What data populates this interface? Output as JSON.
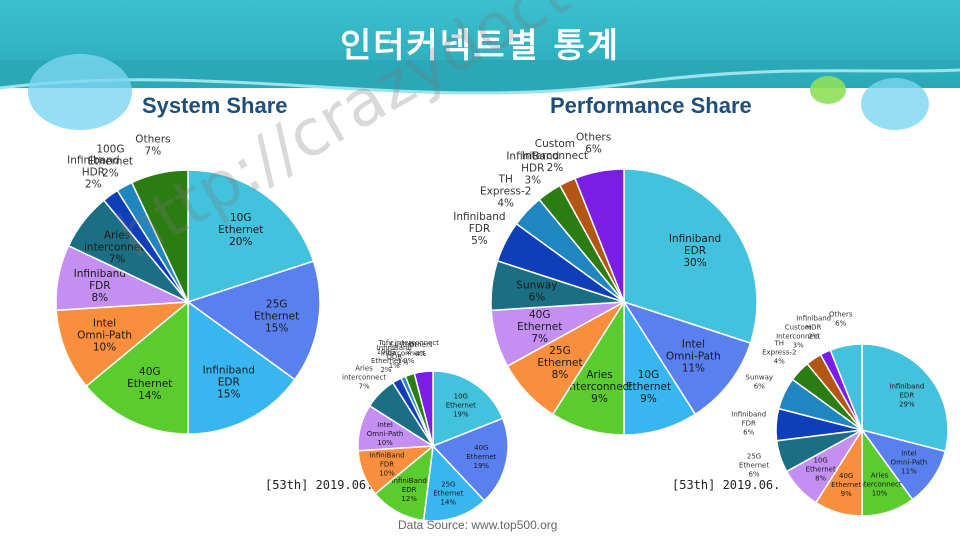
{
  "header": {
    "title": "인터커넥트별 통계"
  },
  "subheads": {
    "system": "System Share",
    "performance": "Performance Share"
  },
  "notes": {
    "date_left": "[53th] 2019.06.",
    "date_right": "[53th] 2019.06.",
    "source": "Data Source: www.top500.org"
  },
  "watermark": "http://crazydoctory.com",
  "colors": {
    "banner": "#3cc0cf",
    "subhead": "#1f4e79"
  },
  "chart_data": [
    {
      "type": "pie",
      "title": "System Share",
      "series": [
        {
          "label": "10G Ethernet",
          "pct": "20%",
          "value": 20,
          "color": "#43c2dd"
        },
        {
          "label": "25G Ethernet",
          "pct": "15%",
          "value": 15,
          "color": "#5a80f0"
        },
        {
          "label": "Infiniband EDR",
          "pct": "15%",
          "value": 15,
          "color": "#38b6f0"
        },
        {
          "label": "40G Ethernet",
          "pct": "14%",
          "value": 14,
          "color": "#5bcc2e"
        },
        {
          "label": "Intel Omni-Path",
          "pct": "10%",
          "value": 10,
          "color": "#f98f3c"
        },
        {
          "label": "Infiniband FDR",
          "pct": "8%",
          "value": 8,
          "color": "#c48ef2"
        },
        {
          "label": "Aries interconnect",
          "pct": "7%",
          "value": 7,
          "color": "#1b6f84"
        },
        {
          "label": "Infiniband HDR",
          "pct": "2%",
          "value": 2,
          "color": "#0f3fb8"
        },
        {
          "label": "100G Ethernet",
          "pct": "2%",
          "value": 2,
          "color": "#1f86c0"
        },
        {
          "label": "Others",
          "pct": "7%",
          "value": 7,
          "color": "#2b7d12"
        }
      ]
    },
    {
      "type": "pie",
      "title": "",
      "series": [
        {
          "label": "10G Ethernet",
          "pct": "19%",
          "value": 19,
          "color": "#43c2dd"
        },
        {
          "label": "40G Ethernet",
          "pct": "19%",
          "value": 19,
          "color": "#5a80f0"
        },
        {
          "label": "25G Ethernet",
          "pct": "14%",
          "value": 14,
          "color": "#38b6f0"
        },
        {
          "label": "InfiniBand EDR",
          "pct": "12%",
          "value": 12,
          "color": "#5bcc2e"
        },
        {
          "label": "InfiniBand FDR",
          "pct": "10%",
          "value": 10,
          "color": "#f98f3c"
        },
        {
          "label": "Intel Omni-Path",
          "pct": "10%",
          "value": 10,
          "color": "#c48ef2"
        },
        {
          "label": "Aries interconnect",
          "pct": "7%",
          "value": 7,
          "color": "#1b6f84"
        },
        {
          "label": "100G Ethernet",
          "pct": "2%",
          "value": 2,
          "color": "#0f3fb8"
        },
        {
          "label": "InfiniBand QDR",
          "pct": "1%",
          "value": 1,
          "color": "#1f86c0"
        },
        {
          "label": "Custom Interconnect",
          "pct": "2%",
          "value": 2,
          "color": "#2b7d12"
        },
        {
          "label": "Tofu interconnect 2",
          "pct": "0%",
          "value": 0,
          "color": "#b35514"
        },
        {
          "label": "Others",
          "pct": "4%",
          "value": 4,
          "color": "#7a1ee6"
        }
      ]
    },
    {
      "type": "pie",
      "title": "Performance Share",
      "series": [
        {
          "label": "Infiniband EDR",
          "pct": "30%",
          "value": 30,
          "color": "#43c2dd"
        },
        {
          "label": "Intel Omni-Path",
          "pct": "11%",
          "value": 11,
          "color": "#5a80f0"
        },
        {
          "label": "10G Ethernet",
          "pct": "9%",
          "value": 9,
          "color": "#38b6f0"
        },
        {
          "label": "Aries interconnect",
          "pct": "9%",
          "value": 9,
          "color": "#5bcc2e"
        },
        {
          "label": "25G Ethernet",
          "pct": "8%",
          "value": 8,
          "color": "#f98f3c"
        },
        {
          "label": "40G Ethernet",
          "pct": "7%",
          "value": 7,
          "color": "#c48ef2"
        },
        {
          "label": "Sunway",
          "pct": "6%",
          "value": 6,
          "color": "#1b6f84"
        },
        {
          "label": "Infiniband FDR",
          "pct": "5%",
          "value": 5,
          "color": "#0f3fb8"
        },
        {
          "label": "TH Express-2",
          "pct": "4%",
          "value": 4,
          "color": "#1f86c0"
        },
        {
          "label": "InfiniBand HDR",
          "pct": "3%",
          "value": 3,
          "color": "#2b7d12"
        },
        {
          "label": "Custom Interconnect",
          "pct": "2%",
          "value": 2,
          "color": "#b35514"
        },
        {
          "label": "Others",
          "pct": "6%",
          "value": 6,
          "color": "#7a1ee6"
        }
      ]
    },
    {
      "type": "pie",
      "title": "",
      "series": [
        {
          "label": "Infiniband EDR",
          "pct": "29%",
          "value": 29,
          "color": "#43c2dd"
        },
        {
          "label": "Intel Omni-Path",
          "pct": "11%",
          "value": 11,
          "color": "#5a80f0"
        },
        {
          "label": "Aries interconnect",
          "pct": "10%",
          "value": 10,
          "color": "#5bcc2e"
        },
        {
          "label": "40G Ethernet",
          "pct": "9%",
          "value": 9,
          "color": "#f98f3c"
        },
        {
          "label": "10G Ethernet",
          "pct": "8%",
          "value": 8,
          "color": "#c48ef2"
        },
        {
          "label": "25G Ethernet",
          "pct": "6%",
          "value": 6,
          "color": "#1b6f84"
        },
        {
          "label": "Infiniband FDR",
          "pct": "6%",
          "value": 6,
          "color": "#0f3fb8"
        },
        {
          "label": "Sunway",
          "pct": "6%",
          "value": 6,
          "color": "#1f86c0"
        },
        {
          "label": "TH Express-2",
          "pct": "4%",
          "value": 4,
          "color": "#2b7d12"
        },
        {
          "label": "Custom Interconnect",
          "pct": "3%",
          "value": 3,
          "color": "#b35514"
        },
        {
          "label": "Infiniband HDR",
          "pct": "2%",
          "value": 2,
          "color": "#7a1ee6"
        },
        {
          "label": "Others",
          "pct": "6%",
          "value": 6,
          "color": "#43c2dd"
        }
      ]
    }
  ]
}
